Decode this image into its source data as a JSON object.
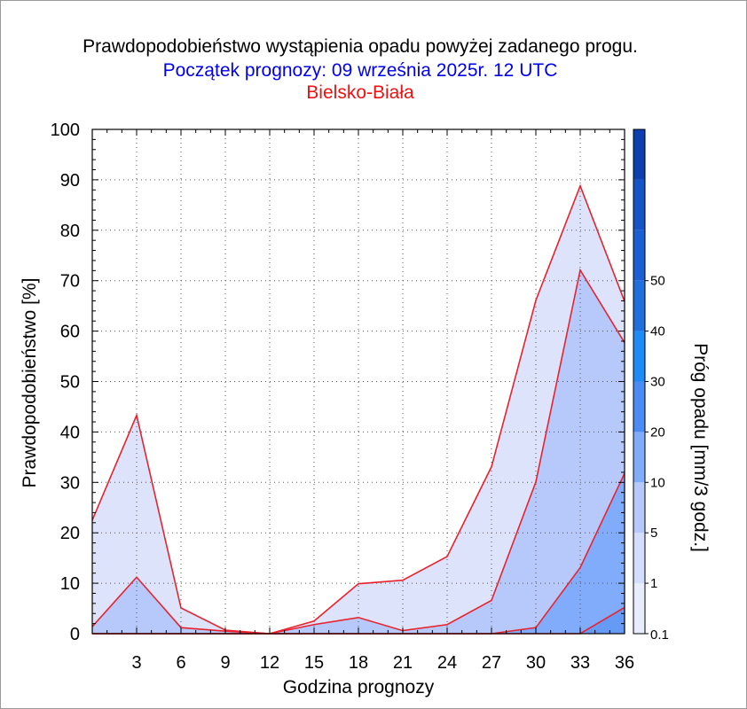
{
  "chart_data": {
    "type": "area",
    "title": "Prawdopodobieństwo wystąpienia opadu powyżej zadanego progu.",
    "subtitle": "Początek prognozy: 09 września 2025r. 12 UTC",
    "location": "Bielsko-Biała",
    "xlabel": "Godzina prognozy",
    "ylabel": "Prawdopodobieństwo [%]",
    "colorbar_label": "Próg opadu [mm/3 godz.]",
    "xlim": [
      0,
      36
    ],
    "ylim": [
      0,
      100
    ],
    "xticks": [
      3,
      6,
      9,
      12,
      15,
      18,
      21,
      24,
      27,
      30,
      33,
      36
    ],
    "yticks": [
      0,
      10,
      20,
      30,
      40,
      50,
      60,
      70,
      80,
      90,
      100
    ],
    "grid": true,
    "x": [
      0,
      3,
      6,
      9,
      12,
      15,
      18,
      21,
      24,
      27,
      30,
      33,
      36
    ],
    "series": [
      {
        "threshold": "0.1",
        "color": "#dce3fb",
        "values": [
          22.5,
          43.3,
          5.1,
          0.7,
          0,
          2.5,
          9.9,
          10.6,
          15.3,
          33.1,
          66.1,
          88.8,
          65.9
        ]
      },
      {
        "threshold": "1",
        "color": "#b7c9fb",
        "values": [
          1.4,
          11.2,
          1.2,
          0.5,
          0,
          1.8,
          3.2,
          0.6,
          1.8,
          6.6,
          30.1,
          72.1,
          57.7
        ]
      },
      {
        "threshold": "5",
        "color": "#80acfb",
        "values": [
          0,
          0,
          0,
          0,
          0,
          0,
          0,
          0,
          0,
          0,
          1.2,
          13.1,
          31.8
        ]
      },
      {
        "threshold": "10",
        "color": "#669bf5",
        "values": [
          0,
          0,
          0,
          0,
          0,
          0,
          0,
          0,
          0,
          0,
          0,
          0,
          5.2
        ]
      }
    ],
    "colorbar": {
      "levels": [
        "0.1",
        "1",
        "5",
        "10",
        "20",
        "30",
        "40",
        "50"
      ],
      "colors": [
        "#e8ecfd",
        "#d3ddfc",
        "#b7c9fb",
        "#80acfb",
        "#4a8bf5",
        "#1e8cf7",
        "#1f6fde",
        "#1a5fd4",
        "#1553c8",
        "#0d3fb0"
      ]
    }
  }
}
